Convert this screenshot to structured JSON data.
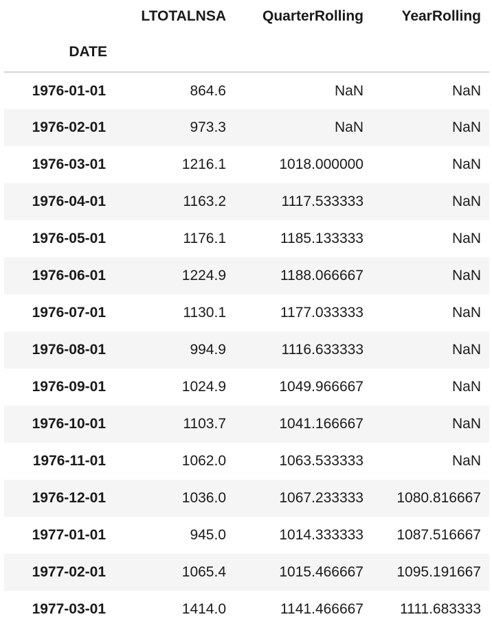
{
  "table": {
    "columns": [
      "LTOTALNSA",
      "QuarterRolling",
      "YearRolling"
    ],
    "index_name": "DATE",
    "rows": [
      {
        "date": "1976-01-01",
        "ltotalnsa": "864.6",
        "quarter": "NaN",
        "year": "NaN"
      },
      {
        "date": "1976-02-01",
        "ltotalnsa": "973.3",
        "quarter": "NaN",
        "year": "NaN"
      },
      {
        "date": "1976-03-01",
        "ltotalnsa": "1216.1",
        "quarter": "1018.000000",
        "year": "NaN"
      },
      {
        "date": "1976-04-01",
        "ltotalnsa": "1163.2",
        "quarter": "1117.533333",
        "year": "NaN"
      },
      {
        "date": "1976-05-01",
        "ltotalnsa": "1176.1",
        "quarter": "1185.133333",
        "year": "NaN"
      },
      {
        "date": "1976-06-01",
        "ltotalnsa": "1224.9",
        "quarter": "1188.066667",
        "year": "NaN"
      },
      {
        "date": "1976-07-01",
        "ltotalnsa": "1130.1",
        "quarter": "1177.033333",
        "year": "NaN"
      },
      {
        "date": "1976-08-01",
        "ltotalnsa": "994.9",
        "quarter": "1116.633333",
        "year": "NaN"
      },
      {
        "date": "1976-09-01",
        "ltotalnsa": "1024.9",
        "quarter": "1049.966667",
        "year": "NaN"
      },
      {
        "date": "1976-10-01",
        "ltotalnsa": "1103.7",
        "quarter": "1041.166667",
        "year": "NaN"
      },
      {
        "date": "1976-11-01",
        "ltotalnsa": "1062.0",
        "quarter": "1063.533333",
        "year": "NaN"
      },
      {
        "date": "1976-12-01",
        "ltotalnsa": "1036.0",
        "quarter": "1067.233333",
        "year": "1080.816667"
      },
      {
        "date": "1977-01-01",
        "ltotalnsa": "945.0",
        "quarter": "1014.333333",
        "year": "1087.516667"
      },
      {
        "date": "1977-02-01",
        "ltotalnsa": "1065.4",
        "quarter": "1015.466667",
        "year": "1095.191667"
      },
      {
        "date": "1977-03-01",
        "ltotalnsa": "1414.0",
        "quarter": "1141.466667",
        "year": "1111.683333"
      }
    ]
  }
}
